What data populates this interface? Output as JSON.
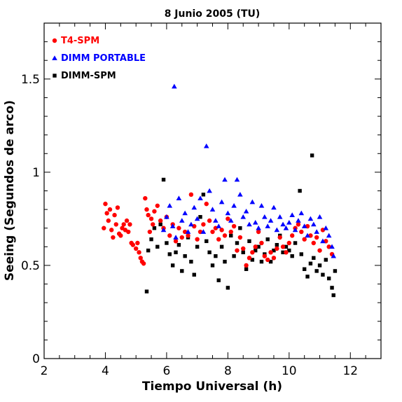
{
  "chart_data": {
    "type": "scatter",
    "title": "8 Junio 2005 (TU)",
    "xlabel": "Tiempo Universal (h)",
    "ylabel": "Seeing (Segundos de arco)",
    "xlim": [
      2,
      13
    ],
    "ylim": [
      0,
      1.8
    ],
    "xticks": [
      2,
      4,
      6,
      8,
      10,
      12
    ],
    "yticks": [
      0,
      0.5,
      1,
      1.5
    ],
    "xtick_labels": [
      "2",
      "4",
      "6",
      "8",
      "10",
      "12"
    ],
    "ytick_labels": [
      "0",
      "0.5",
      "1",
      "1.5"
    ],
    "legend_position": "top-left",
    "series": [
      {
        "name": "T4-SPM",
        "color": "#ff0000",
        "marker": "circle",
        "points": [
          [
            3.95,
            0.7
          ],
          [
            4.0,
            0.83
          ],
          [
            4.05,
            0.78
          ],
          [
            4.1,
            0.74
          ],
          [
            4.15,
            0.8
          ],
          [
            4.2,
            0.69
          ],
          [
            4.25,
            0.65
          ],
          [
            4.3,
            0.77
          ],
          [
            4.35,
            0.72
          ],
          [
            4.4,
            0.81
          ],
          [
            4.45,
            0.67
          ],
          [
            4.5,
            0.66
          ],
          [
            4.55,
            0.7
          ],
          [
            4.6,
            0.72
          ],
          [
            4.65,
            0.69
          ],
          [
            4.7,
            0.74
          ],
          [
            4.75,
            0.68
          ],
          [
            4.8,
            0.72
          ],
          [
            4.85,
            0.62
          ],
          [
            4.9,
            0.61
          ],
          [
            5.0,
            0.59
          ],
          [
            5.05,
            0.62
          ],
          [
            5.1,
            0.57
          ],
          [
            5.15,
            0.54
          ],
          [
            5.2,
            0.52
          ],
          [
            5.25,
            0.51
          ],
          [
            5.3,
            0.86
          ],
          [
            5.35,
            0.8
          ],
          [
            5.4,
            0.77
          ],
          [
            5.45,
            0.68
          ],
          [
            5.5,
            0.75
          ],
          [
            5.55,
            0.72
          ],
          [
            5.6,
            0.79
          ],
          [
            5.7,
            0.82
          ],
          [
            5.8,
            0.74
          ],
          [
            5.9,
            0.7
          ],
          [
            6.0,
            0.76
          ],
          [
            6.1,
            0.66
          ],
          [
            6.2,
            0.72
          ],
          [
            6.3,
            0.63
          ],
          [
            6.4,
            0.7
          ],
          [
            6.5,
            0.65
          ],
          [
            6.6,
            0.68
          ],
          [
            6.7,
            0.66
          ],
          [
            6.8,
            0.88
          ],
          [
            6.9,
            0.71
          ],
          [
            7.0,
            0.64
          ],
          [
            7.1,
            0.68
          ],
          [
            7.2,
            0.72
          ],
          [
            7.3,
            0.83
          ],
          [
            7.4,
            0.74
          ],
          [
            7.5,
            0.68
          ],
          [
            7.6,
            0.7
          ],
          [
            7.7,
            0.64
          ],
          [
            7.8,
            0.69
          ],
          [
            7.9,
            0.66
          ],
          [
            8.0,
            0.75
          ],
          [
            8.1,
            0.68
          ],
          [
            8.2,
            0.71
          ],
          [
            8.3,
            0.58
          ],
          [
            8.4,
            0.65
          ],
          [
            8.5,
            0.59
          ],
          [
            8.6,
            0.5
          ],
          [
            8.7,
            0.54
          ],
          [
            8.8,
            0.57
          ],
          [
            8.9,
            0.6
          ],
          [
            9.0,
            0.68
          ],
          [
            9.1,
            0.62
          ],
          [
            9.2,
            0.55
          ],
          [
            9.3,
            0.53
          ],
          [
            9.4,
            0.57
          ],
          [
            9.5,
            0.54
          ],
          [
            9.6,
            0.59
          ],
          [
            9.7,
            0.65
          ],
          [
            9.8,
            0.6
          ],
          [
            9.9,
            0.57
          ],
          [
            10.0,
            0.62
          ],
          [
            10.1,
            0.66
          ],
          [
            10.2,
            0.7
          ],
          [
            10.3,
            0.72
          ],
          [
            10.4,
            0.68
          ],
          [
            10.5,
            0.64
          ],
          [
            10.6,
            0.71
          ],
          [
            10.7,
            0.66
          ],
          [
            10.8,
            0.62
          ],
          [
            10.9,
            0.65
          ],
          [
            11.0,
            0.58
          ],
          [
            11.1,
            0.69
          ],
          [
            11.2,
            0.63
          ],
          [
            11.3,
            0.6
          ],
          [
            11.4,
            0.56
          ]
        ]
      },
      {
        "name": "DIMM PORTABLE",
        "color": "#0000ff",
        "marker": "triangle",
        "points": [
          [
            5.9,
            0.69
          ],
          [
            6.0,
            0.76
          ],
          [
            6.1,
            0.82
          ],
          [
            6.2,
            0.71
          ],
          [
            6.25,
            1.46
          ],
          [
            6.3,
            0.65
          ],
          [
            6.4,
            0.86
          ],
          [
            6.5,
            0.74
          ],
          [
            6.6,
            0.78
          ],
          [
            6.7,
            0.68
          ],
          [
            6.8,
            0.72
          ],
          [
            6.9,
            0.81
          ],
          [
            7.0,
            0.75
          ],
          [
            7.1,
            0.86
          ],
          [
            7.2,
            0.68
          ],
          [
            7.3,
            1.14
          ],
          [
            7.4,
            0.9
          ],
          [
            7.5,
            0.8
          ],
          [
            7.6,
            0.74
          ],
          [
            7.7,
            0.71
          ],
          [
            7.8,
            0.84
          ],
          [
            7.9,
            0.96
          ],
          [
            8.0,
            0.78
          ],
          [
            8.1,
            0.74
          ],
          [
            8.2,
            0.82
          ],
          [
            8.3,
            0.96
          ],
          [
            8.4,
            0.88
          ],
          [
            8.5,
            0.76
          ],
          [
            8.6,
            0.79
          ],
          [
            8.7,
            0.72
          ],
          [
            8.8,
            0.84
          ],
          [
            8.9,
            0.73
          ],
          [
            9.0,
            0.7
          ],
          [
            9.1,
            0.82
          ],
          [
            9.2,
            0.76
          ],
          [
            9.3,
            0.71
          ],
          [
            9.4,
            0.74
          ],
          [
            9.5,
            0.81
          ],
          [
            9.6,
            0.69
          ],
          [
            9.7,
            0.76
          ],
          [
            9.8,
            0.72
          ],
          [
            9.9,
            0.7
          ],
          [
            10.0,
            0.73
          ],
          [
            10.1,
            0.77
          ],
          [
            10.2,
            0.69
          ],
          [
            10.3,
            0.74
          ],
          [
            10.4,
            0.78
          ],
          [
            10.5,
            0.71
          ],
          [
            10.6,
            0.66
          ],
          [
            10.7,
            0.75
          ],
          [
            10.8,
            0.72
          ],
          [
            10.9,
            0.68
          ],
          [
            11.0,
            0.76
          ],
          [
            11.1,
            0.63
          ],
          [
            11.2,
            0.7
          ],
          [
            11.3,
            0.66
          ],
          [
            11.4,
            0.6
          ],
          [
            11.45,
            0.55
          ]
        ]
      },
      {
        "name": "DIMM-SPM",
        "color": "#000000",
        "marker": "square",
        "points": [
          [
            5.35,
            0.36
          ],
          [
            5.4,
            0.58
          ],
          [
            5.5,
            0.64
          ],
          [
            5.6,
            0.7
          ],
          [
            5.7,
            0.6
          ],
          [
            5.8,
            0.72
          ],
          [
            5.9,
            0.96
          ],
          [
            6.0,
            0.62
          ],
          [
            6.1,
            0.56
          ],
          [
            6.2,
            0.5
          ],
          [
            6.3,
            0.57
          ],
          [
            6.4,
            0.61
          ],
          [
            6.5,
            0.47
          ],
          [
            6.6,
            0.55
          ],
          [
            6.7,
            0.65
          ],
          [
            6.8,
            0.52
          ],
          [
            6.9,
            0.45
          ],
          [
            7.0,
            0.6
          ],
          [
            7.1,
            0.76
          ],
          [
            7.2,
            0.88
          ],
          [
            7.3,
            0.63
          ],
          [
            7.4,
            0.57
          ],
          [
            7.5,
            0.5
          ],
          [
            7.6,
            0.55
          ],
          [
            7.7,
            0.42
          ],
          [
            7.8,
            0.6
          ],
          [
            7.9,
            0.52
          ],
          [
            8.0,
            0.38
          ],
          [
            8.1,
            0.66
          ],
          [
            8.2,
            0.55
          ],
          [
            8.3,
            0.62
          ],
          [
            8.4,
            0.7
          ],
          [
            8.5,
            0.57
          ],
          [
            8.6,
            0.48
          ],
          [
            8.7,
            0.63
          ],
          [
            8.8,
            0.53
          ],
          [
            8.9,
            0.58
          ],
          [
            9.0,
            0.6
          ],
          [
            9.1,
            0.52
          ],
          [
            9.2,
            0.56
          ],
          [
            9.3,
            0.64
          ],
          [
            9.4,
            0.52
          ],
          [
            9.5,
            0.58
          ],
          [
            9.6,
            0.61
          ],
          [
            9.7,
            0.66
          ],
          [
            9.8,
            0.57
          ],
          [
            9.9,
            0.6
          ],
          [
            10.0,
            0.58
          ],
          [
            10.1,
            0.55
          ],
          [
            10.2,
            0.62
          ],
          [
            10.35,
            0.9
          ],
          [
            10.4,
            0.56
          ],
          [
            10.5,
            0.48
          ],
          [
            10.6,
            0.44
          ],
          [
            10.7,
            0.51
          ],
          [
            10.75,
            1.09
          ],
          [
            10.8,
            0.54
          ],
          [
            10.9,
            0.47
          ],
          [
            11.0,
            0.5
          ],
          [
            11.1,
            0.45
          ],
          [
            11.2,
            0.53
          ],
          [
            11.3,
            0.43
          ],
          [
            11.4,
            0.38
          ],
          [
            11.45,
            0.34
          ],
          [
            11.5,
            0.47
          ]
        ]
      }
    ]
  }
}
